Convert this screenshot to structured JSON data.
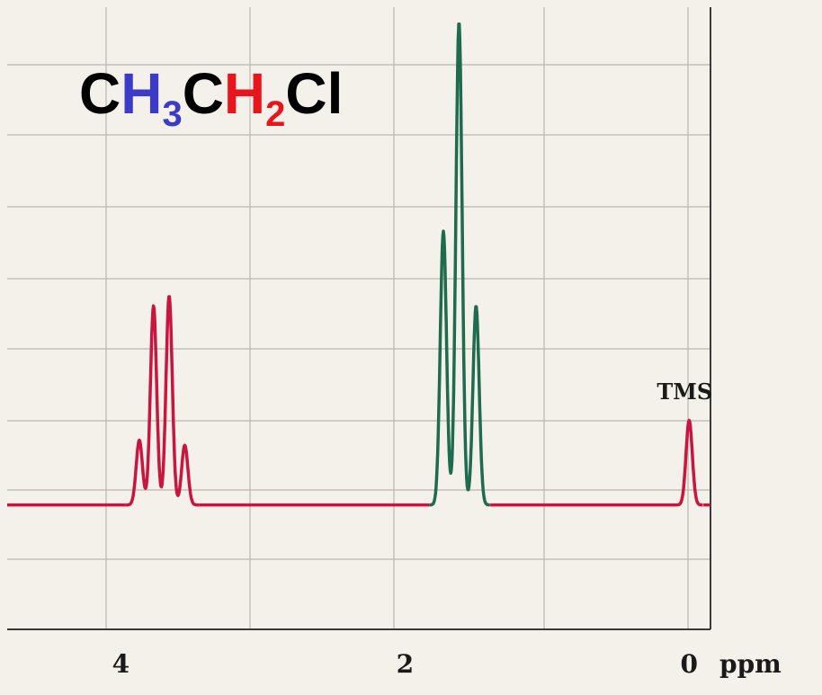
{
  "title": {
    "parts": [
      {
        "text": "C",
        "color": "#000000"
      },
      {
        "text": "H",
        "color": "#3b3bc8"
      },
      {
        "text": "3",
        "color": "#3b3bc8",
        "sub": true
      },
      {
        "text": "C",
        "color": "#000000"
      },
      {
        "text": "H",
        "color": "#e8161c"
      },
      {
        "text": "2",
        "color": "#e8161c",
        "sub": true
      },
      {
        "text": "Cl",
        "color": "#000000"
      }
    ]
  },
  "chart_data": {
    "type": "line",
    "title": "CH3CH2Cl",
    "xlabel": "ppm",
    "x_reversed": true,
    "xlim": [
      4.8,
      -0.15
    ],
    "ylim": [
      -0.25,
      1.0
    ],
    "xticks": [
      {
        "value": 4,
        "label": "4"
      },
      {
        "value": 2,
        "label": "2"
      },
      {
        "value": 0,
        "label": "0"
      }
    ],
    "grid": true,
    "annotations": [
      {
        "text": "TMS",
        "x": 0.0,
        "y": 0.18
      }
    ],
    "series": [
      {
        "color": "#c8163f",
        "peaks": [
          {
            "center": 3.87,
            "height": 0.13
          },
          {
            "center": 3.77,
            "height": 0.4
          },
          {
            "center": 3.66,
            "height": 0.42
          },
          {
            "center": 3.55,
            "height": 0.12
          }
        ]
      },
      {
        "color": "#1e6b4f",
        "peaks": [
          {
            "center": 1.73,
            "height": 0.55
          },
          {
            "center": 1.62,
            "height": 0.97
          },
          {
            "center": 1.5,
            "height": 0.4
          }
        ]
      },
      {
        "color": "#c8163f",
        "peaks": [
          {
            "center": 0.0,
            "height": 0.17
          }
        ]
      }
    ]
  }
}
